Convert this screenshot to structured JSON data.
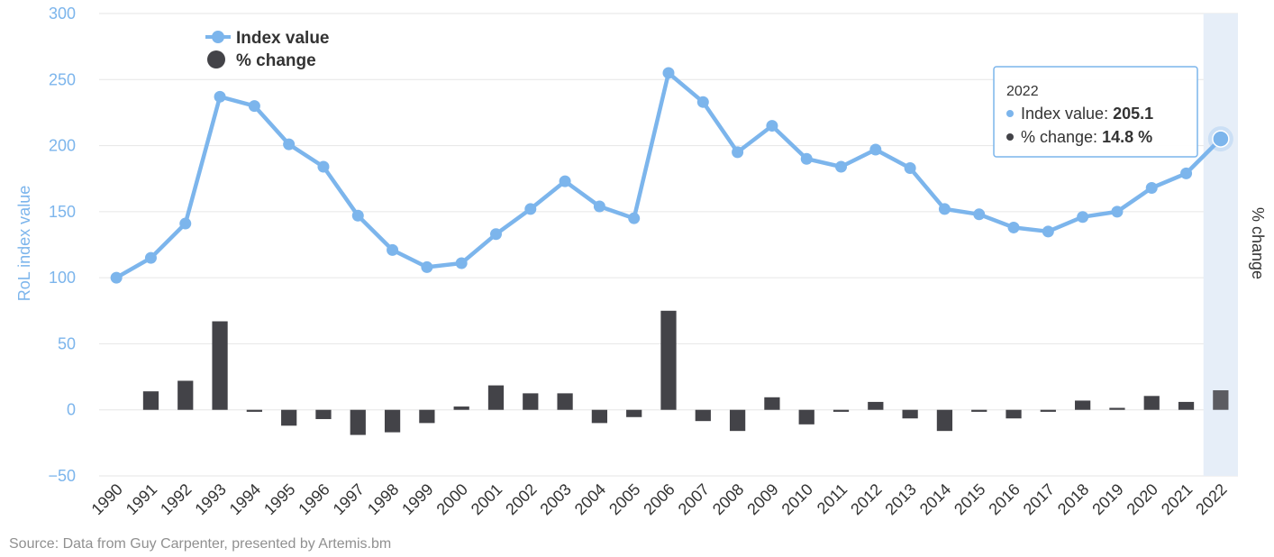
{
  "chart_data": {
    "type": "line+bar",
    "categories": [
      "1990",
      "1991",
      "1992",
      "1993",
      "1994",
      "1995",
      "1996",
      "1997",
      "1998",
      "1999",
      "2000",
      "2001",
      "2002",
      "2003",
      "2004",
      "2005",
      "2006",
      "2007",
      "2008",
      "2009",
      "2010",
      "2011",
      "2012",
      "2013",
      "2014",
      "2015",
      "2016",
      "2017",
      "2018",
      "2019",
      "2020",
      "2021",
      "2022"
    ],
    "series": [
      {
        "name": "Index value",
        "type": "line",
        "color": "#7cb5ec",
        "values": [
          100,
          115,
          141,
          237,
          230,
          201,
          184,
          147,
          121,
          108,
          111,
          133,
          152,
          173,
          154,
          145,
          255,
          233,
          195,
          215,
          190,
          184,
          197,
          183,
          152,
          148,
          138,
          135,
          146,
          150,
          168,
          179,
          205.1
        ]
      },
      {
        "name": "% change",
        "type": "bar",
        "color": "#434348",
        "values": [
          0,
          14,
          22,
          67,
          -1.5,
          -12,
          -7,
          -19,
          -17,
          -10,
          2.5,
          18.5,
          12.5,
          12.5,
          -10,
          -5.5,
          75,
          -8.5,
          -16,
          9.5,
          -11,
          -1.5,
          6,
          -6.5,
          -16,
          -1.5,
          -6.5,
          -1.5,
          7,
          1.5,
          10.5,
          6,
          14.8
        ]
      }
    ],
    "ylabel_left": "RoL index value",
    "ylabel_right": "% change",
    "ylim": [
      -50,
      300
    ],
    "yticks": [
      "300",
      "250",
      "200",
      "150",
      "100",
      "50",
      "0",
      "−50"
    ],
    "grid": true,
    "legend_position": "top-left",
    "highlighted_category": "2022"
  },
  "legend": {
    "index_label": "Index value",
    "change_label": "% change"
  },
  "tooltip": {
    "year": "2022",
    "index_prefix": "Index value: ",
    "index_value": "205.1",
    "change_prefix": "% change: ",
    "change_value": "14.8 %"
  },
  "source": "Source: Data from Guy Carpenter, presented by Artemis.bm"
}
